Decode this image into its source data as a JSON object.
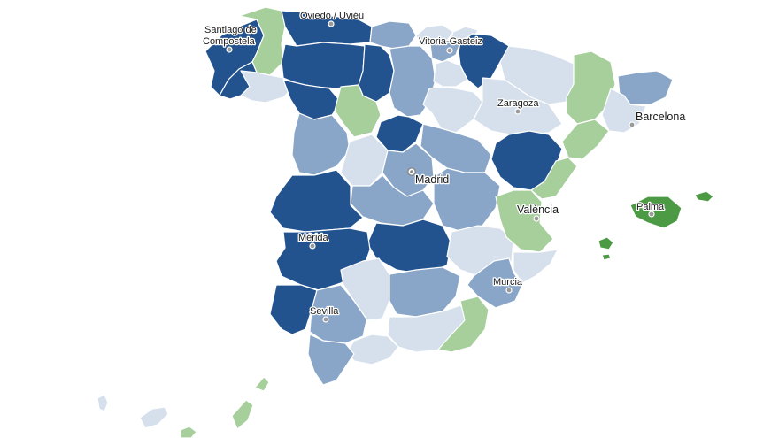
{
  "colors": {
    "dark_blue": "#23538f",
    "mid_blue": "#89a6c8",
    "light_blue": "#d5e0ec",
    "light_green": "#a6cf9c",
    "dark_green": "#4d9a44"
  },
  "cities": [
    {
      "id": "oviedo",
      "label": "Oviedo / Uviéu"
    },
    {
      "id": "santiago",
      "label_line1": "Santiago de",
      "label_line2": "Compostela"
    },
    {
      "id": "vitoria",
      "label": "Vitoria-Gasteiz"
    },
    {
      "id": "zaragoza",
      "label": "Zaragoza"
    },
    {
      "id": "barcelona",
      "label": "Barcelona"
    },
    {
      "id": "madrid",
      "label": "Madrid"
    },
    {
      "id": "valencia",
      "label": "València"
    },
    {
      "id": "palma",
      "label": "Palma"
    },
    {
      "id": "merida",
      "label": "Mérida"
    },
    {
      "id": "murcia",
      "label": "Murcia"
    },
    {
      "id": "sevilla",
      "label": "Sevilla"
    }
  ]
}
